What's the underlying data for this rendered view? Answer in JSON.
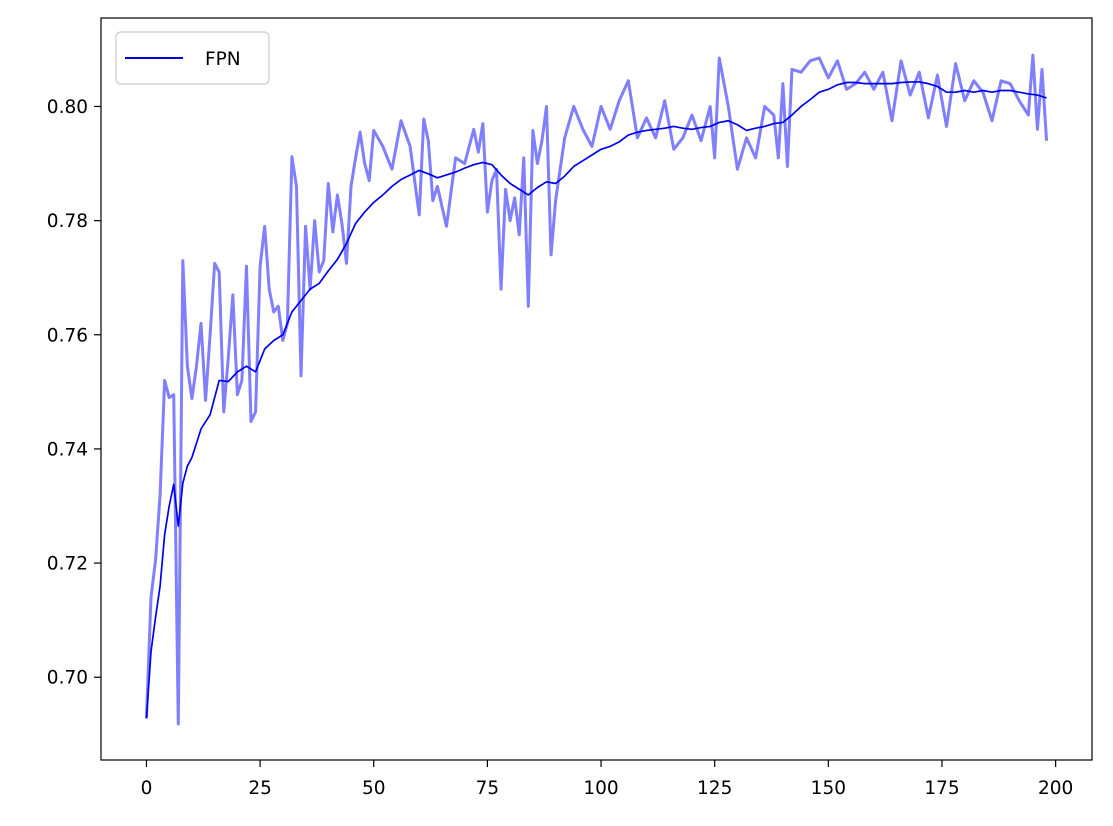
{
  "colors": {
    "raw_series": "#7f7fff",
    "smoothed_series": "#0000ee",
    "axis": "#000000",
    "background": "#ffffff"
  },
  "chart_data": {
    "type": "line",
    "title": "",
    "xlabel": "",
    "ylabel": "",
    "xlim": [
      -10,
      208
    ],
    "ylim": [
      0.6855,
      0.8155
    ],
    "x_ticks": [
      0,
      25,
      50,
      75,
      100,
      125,
      150,
      175,
      200
    ],
    "y_ticks": [
      0.7,
      0.72,
      0.74,
      0.76,
      0.78,
      0.8
    ],
    "x_tick_labels": [
      "0",
      "25",
      "50",
      "75",
      "100",
      "125",
      "150",
      "175",
      "200"
    ],
    "y_tick_labels": [
      "0.70",
      "0.72",
      "0.74",
      "0.76",
      "0.78",
      "0.80"
    ],
    "grid": false,
    "legend": {
      "position": "upper-left",
      "entries": [
        "FPN"
      ]
    },
    "series": [
      {
        "name": "FPN",
        "style": "smoothed",
        "x": [
          0,
          1,
          2,
          3,
          4,
          5,
          6,
          7,
          8,
          9,
          10,
          12,
          14,
          16,
          18,
          20,
          22,
          24,
          26,
          28,
          30,
          32,
          34,
          36,
          38,
          40,
          42,
          44,
          46,
          48,
          50,
          52,
          54,
          56,
          58,
          60,
          62,
          64,
          66,
          68,
          70,
          72,
          74,
          76,
          78,
          80,
          82,
          84,
          86,
          88,
          90,
          92,
          94,
          96,
          98,
          100,
          102,
          104,
          106,
          108,
          110,
          112,
          114,
          116,
          118,
          120,
          122,
          124,
          126,
          128,
          130,
          132,
          134,
          136,
          138,
          140,
          142,
          144,
          146,
          148,
          150,
          152,
          154,
          156,
          158,
          160,
          162,
          164,
          166,
          168,
          170,
          172,
          174,
          176,
          178,
          180,
          182,
          184,
          186,
          188,
          190,
          192,
          194,
          196,
          198
        ],
        "y": [
          0.6928,
          0.7045,
          0.7105,
          0.716,
          0.725,
          0.73,
          0.7338,
          0.7265,
          0.734,
          0.737,
          0.7385,
          0.7435,
          0.746,
          0.752,
          0.7518,
          0.7535,
          0.7545,
          0.7535,
          0.7575,
          0.759,
          0.76,
          0.764,
          0.766,
          0.768,
          0.769,
          0.7712,
          0.7732,
          0.776,
          0.7795,
          0.7815,
          0.7832,
          0.7845,
          0.786,
          0.7872,
          0.788,
          0.7888,
          0.7882,
          0.7875,
          0.788,
          0.7885,
          0.7892,
          0.7898,
          0.7902,
          0.7898,
          0.788,
          0.7865,
          0.7855,
          0.7845,
          0.7858,
          0.7868,
          0.7865,
          0.7878,
          0.7895,
          0.7905,
          0.7915,
          0.7925,
          0.793,
          0.7938,
          0.795,
          0.7955,
          0.7958,
          0.796,
          0.7962,
          0.7965,
          0.7962,
          0.796,
          0.7963,
          0.7965,
          0.7972,
          0.7975,
          0.7968,
          0.7958,
          0.7962,
          0.7965,
          0.797,
          0.7972,
          0.7985,
          0.8,
          0.8012,
          0.8025,
          0.803,
          0.8038,
          0.8042,
          0.8042,
          0.804,
          0.804,
          0.804,
          0.804,
          0.8042,
          0.8043,
          0.8043,
          0.804,
          0.8035,
          0.8025,
          0.8025,
          0.8028,
          0.8025,
          0.8028,
          0.8025,
          0.8028,
          0.8028,
          0.8025,
          0.8022,
          0.802,
          0.8015
        ]
      },
      {
        "name": "",
        "style": "raw",
        "x": [
          0,
          1,
          2,
          3,
          4,
          5,
          6,
          7,
          8,
          9,
          10,
          11,
          12,
          13,
          14,
          15,
          16,
          17,
          18,
          19,
          20,
          21,
          22,
          23,
          24,
          25,
          26,
          27,
          28,
          29,
          30,
          31,
          32,
          33,
          34,
          35,
          36,
          37,
          38,
          39,
          40,
          41,
          42,
          43,
          44,
          45,
          46,
          47,
          48,
          49,
          50,
          52,
          54,
          56,
          58,
          60,
          61,
          62,
          63,
          64,
          66,
          68,
          70,
          72,
          73,
          74,
          75,
          76,
          77,
          78,
          79,
          80,
          81,
          82,
          83,
          84,
          85,
          86,
          87,
          88,
          89,
          90,
          92,
          94,
          96,
          98,
          100,
          102,
          104,
          106,
          108,
          110,
          112,
          114,
          116,
          118,
          120,
          122,
          124,
          125,
          126,
          128,
          130,
          132,
          134,
          136,
          138,
          139,
          140,
          141,
          142,
          144,
          146,
          148,
          150,
          152,
          154,
          156,
          158,
          160,
          162,
          164,
          166,
          168,
          170,
          172,
          174,
          176,
          178,
          180,
          182,
          184,
          186,
          188,
          190,
          192,
          194,
          195,
          196,
          197,
          198
        ],
        "y": [
          0.6928,
          0.714,
          0.7205,
          0.732,
          0.752,
          0.749,
          0.7495,
          0.6918,
          0.773,
          0.7545,
          0.7488,
          0.7545,
          0.762,
          0.7485,
          0.76,
          0.7725,
          0.771,
          0.7465,
          0.756,
          0.767,
          0.7495,
          0.752,
          0.772,
          0.7448,
          0.7465,
          0.772,
          0.779,
          0.768,
          0.764,
          0.765,
          0.759,
          0.762,
          0.7912,
          0.786,
          0.7528,
          0.779,
          0.768,
          0.78,
          0.771,
          0.773,
          0.7865,
          0.778,
          0.7845,
          0.7795,
          0.7725,
          0.786,
          0.791,
          0.7955,
          0.79,
          0.787,
          0.7958,
          0.793,
          0.789,
          0.7975,
          0.793,
          0.781,
          0.7978,
          0.794,
          0.7835,
          0.786,
          0.779,
          0.791,
          0.79,
          0.796,
          0.792,
          0.797,
          0.7815,
          0.787,
          0.789,
          0.768,
          0.7855,
          0.78,
          0.784,
          0.7775,
          0.791,
          0.765,
          0.7958,
          0.79,
          0.794,
          0.8,
          0.774,
          0.7835,
          0.7945,
          0.8,
          0.796,
          0.793,
          0.8,
          0.796,
          0.801,
          0.8045,
          0.7945,
          0.798,
          0.7945,
          0.801,
          0.7925,
          0.7945,
          0.7985,
          0.794,
          0.8,
          0.791,
          0.8085,
          0.8,
          0.789,
          0.7945,
          0.791,
          0.8,
          0.7985,
          0.791,
          0.804,
          0.7895,
          0.8065,
          0.806,
          0.808,
          0.8085,
          0.805,
          0.808,
          0.803,
          0.804,
          0.806,
          0.803,
          0.806,
          0.7975,
          0.808,
          0.802,
          0.806,
          0.798,
          0.8055,
          0.7965,
          0.8075,
          0.801,
          0.8045,
          0.8025,
          0.7975,
          0.8045,
          0.804,
          0.801,
          0.7985,
          0.809,
          0.796,
          0.8065,
          0.794
        ]
      }
    ]
  }
}
